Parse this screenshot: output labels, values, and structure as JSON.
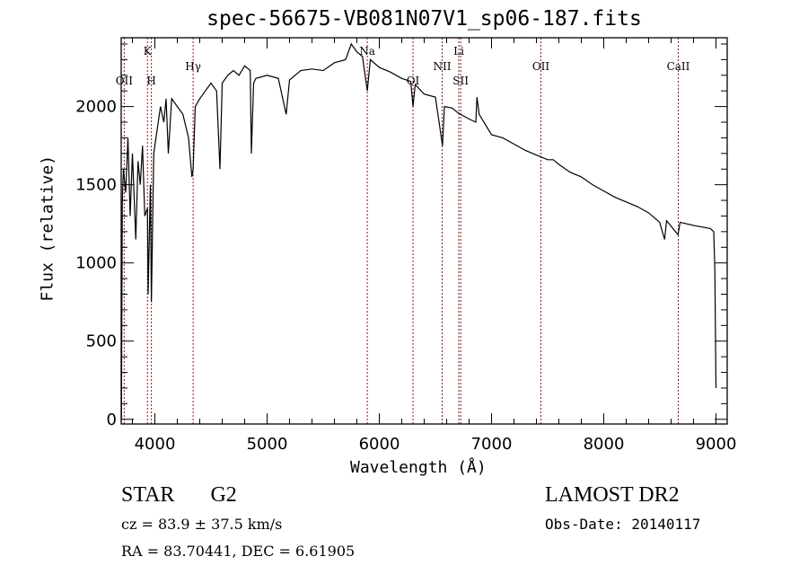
{
  "chart_data": {
    "type": "line",
    "title": "spec-56675-VB081N07V1_sp06-187.fits",
    "xlabel": "Wavelength (Å)",
    "ylabel": "Flux (relative)",
    "xlim": [
      3700,
      9100
    ],
    "ylim": [
      -30,
      2440
    ],
    "xticks": [
      4000,
      5000,
      6000,
      7000,
      8000,
      9000
    ],
    "yticks": [
      0,
      500,
      1000,
      1500,
      2000
    ],
    "grid": false,
    "series": [
      {
        "name": "spectrum",
        "color": "#000000",
        "x": [
          3702,
          3710,
          3720,
          3740,
          3760,
          3780,
          3800,
          3830,
          3850,
          3870,
          3890,
          3910,
          3934,
          3940,
          3960,
          3969,
          3990,
          4020,
          4050,
          4080,
          4100,
          4120,
          4150,
          4200,
          4250,
          4300,
          4330,
          4341,
          4360,
          4400,
          4450,
          4500,
          4550,
          4580,
          4600,
          4650,
          4700,
          4750,
          4800,
          4850,
          4860,
          4880,
          4900,
          5000,
          5100,
          5170,
          5200,
          5300,
          5400,
          5500,
          5600,
          5700,
          5750,
          5800,
          5850,
          5893,
          5920,
          6000,
          6100,
          6200,
          6280,
          6300,
          6320,
          6400,
          6500,
          6563,
          6580,
          6650,
          6700,
          6800,
          6860,
          6870,
          6890,
          7000,
          7100,
          7200,
          7300,
          7400,
          7500,
          7550,
          7600,
          7700,
          7800,
          7900,
          8000,
          8100,
          8200,
          8300,
          8400,
          8498,
          8542,
          8560,
          8662,
          8680,
          8800,
          8950,
          8980,
          8990,
          9000
        ],
        "y": [
          0,
          1400,
          1600,
          1450,
          1800,
          1300,
          1700,
          1150,
          1650,
          1500,
          1750,
          1300,
          1350,
          800,
          1500,
          750,
          1700,
          1850,
          2000,
          1900,
          2050,
          1700,
          2050,
          2000,
          1950,
          1800,
          1550,
          1600,
          2000,
          2050,
          2100,
          2150,
          2100,
          1600,
          2150,
          2200,
          2230,
          2200,
          2260,
          2230,
          1700,
          2150,
          2180,
          2200,
          2180,
          1950,
          2170,
          2230,
          2240,
          2230,
          2280,
          2300,
          2400,
          2350,
          2320,
          2100,
          2300,
          2250,
          2220,
          2180,
          2160,
          2000,
          2140,
          2080,
          2060,
          1750,
          2000,
          1990,
          1960,
          1920,
          1900,
          2060,
          1950,
          1820,
          1800,
          1760,
          1720,
          1690,
          1660,
          1660,
          1630,
          1580,
          1550,
          1500,
          1460,
          1420,
          1390,
          1360,
          1320,
          1260,
          1150,
          1270,
          1180,
          1260,
          1240,
          1220,
          1200,
          950,
          200
        ]
      }
    ],
    "line_markers": [
      {
        "label": "OII",
        "x": 3727
      },
      {
        "label": "K",
        "x": 3934
      },
      {
        "label": "H",
        "x": 3969
      },
      {
        "label": "Hγ",
        "x": 4341
      },
      {
        "label": "Na",
        "x": 5893
      },
      {
        "label": "OI",
        "x": 6300
      },
      {
        "label": "NII",
        "x": 6560
      },
      {
        "label": "Li",
        "x": 6708
      },
      {
        "label": "SII",
        "x": 6725
      },
      {
        "label": "OII",
        "x": 7440
      },
      {
        "label": "CaII",
        "x": 8664
      }
    ],
    "marker_color": "#8b1a1a"
  },
  "info": {
    "class": "STAR",
    "subclass": "G2",
    "survey": "LAMOST DR2",
    "cz": "cz = 83.9 ± 37.5 km/s",
    "obs_date": "Obs-Date: 20140117",
    "radec": "RA =  83.70441, DEC =   6.61905"
  }
}
